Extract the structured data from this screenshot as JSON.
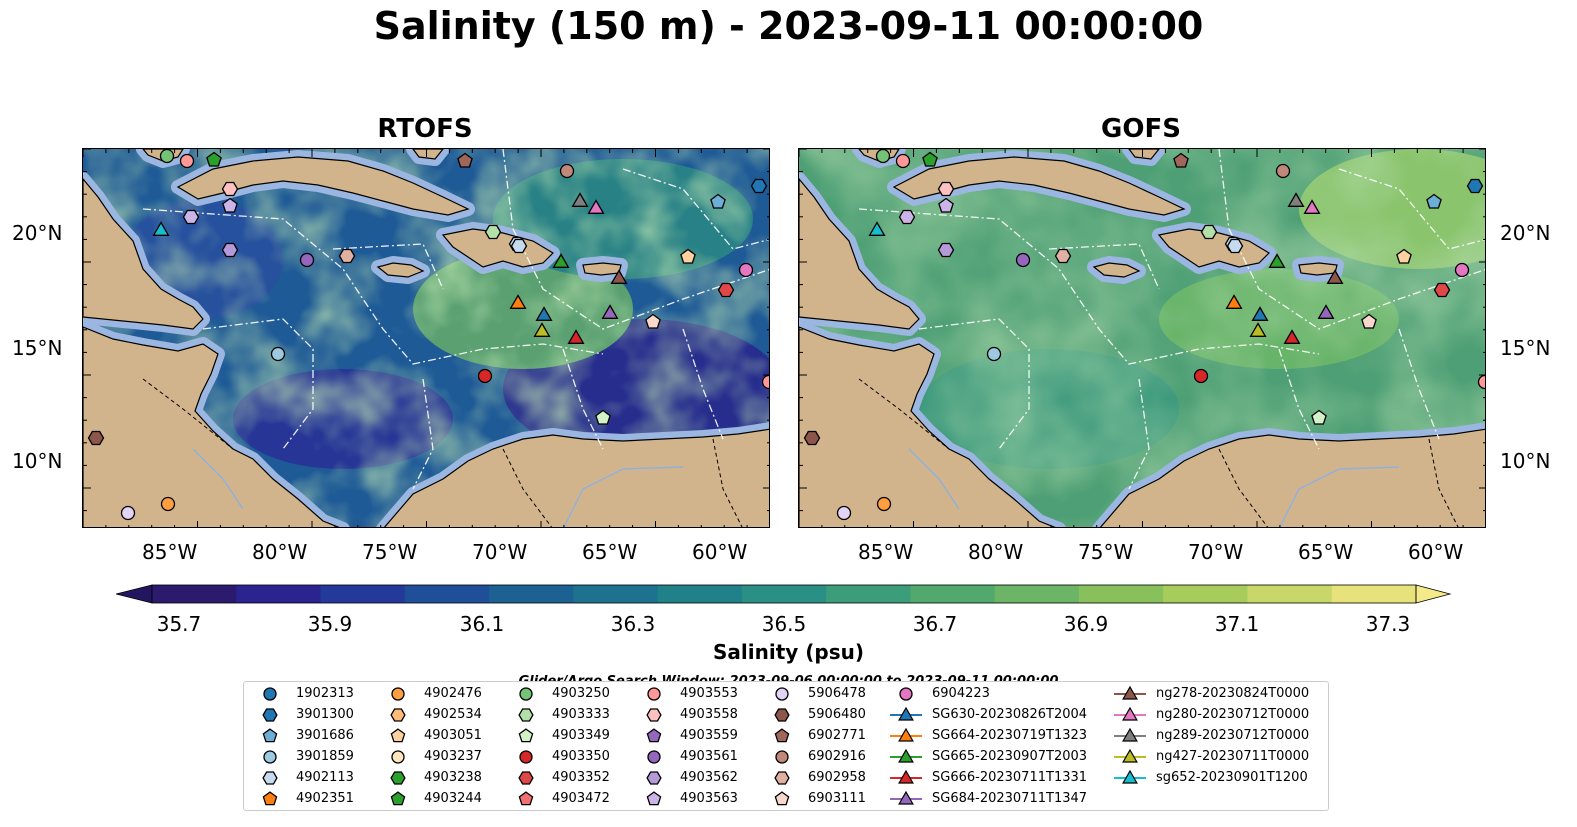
{
  "title": "Salinity (150 m) - 2023-09-11 00:00:00",
  "panels": [
    {
      "title": "RTOFS"
    },
    {
      "title": "GOFS"
    }
  ],
  "lon_labels": [
    "85°W",
    "80°W",
    "75°W",
    "70°W",
    "65°W",
    "60°W"
  ],
  "lat_labels": [
    "20°N",
    "15°N",
    "10°N"
  ],
  "colorbar": {
    "ticks": [
      "35.7",
      "35.9",
      "36.1",
      "36.3",
      "36.5",
      "36.7",
      "36.9",
      "37.1",
      "37.3"
    ],
    "label": "Salinity (psu)",
    "range": [
      35.7,
      37.4
    ],
    "colors": [
      "#2b1a6e",
      "#2a2390",
      "#243a9b",
      "#1f4f98",
      "#1b6293",
      "#1c728f",
      "#20818b",
      "#2a8f84",
      "#3c9d7a",
      "#52a96e",
      "#6cb566",
      "#88c05c",
      "#a8cc5c",
      "#c8d868",
      "#e8e27a"
    ]
  },
  "search_window": "Glider/Argo Search Window: 2023-09-06 00:00:00 to 2023-09-11 00:00:00",
  "colors": {
    "land": "#d2b48c",
    "shelf": "#9bb6e0",
    "rtofs_base": "#1e5a96",
    "gofs_base": "#4e9f75"
  },
  "legend": [
    {
      "label": "1902313",
      "marker": "circle",
      "color": "#1f77b4"
    },
    {
      "label": "3901300",
      "marker": "hexagon",
      "color": "#1f77b4"
    },
    {
      "label": "3901686",
      "marker": "pentagon",
      "color": "#6baed6"
    },
    {
      "label": "3901859",
      "marker": "circle",
      "color": "#9ecae1"
    },
    {
      "label": "4902113",
      "marker": "hexagon",
      "color": "#c6dbef"
    },
    {
      "label": "4902351",
      "marker": "pentagon",
      "color": "#ff7f0e"
    },
    {
      "label": "4902476",
      "marker": "circle",
      "color": "#ff9f40"
    },
    {
      "label": "4902534",
      "marker": "hexagon",
      "color": "#ffbb78"
    },
    {
      "label": "4903051",
      "marker": "pentagon",
      "color": "#ffd0a0"
    },
    {
      "label": "4903237",
      "marker": "circle",
      "color": "#ffe4c0"
    },
    {
      "label": "4903238",
      "marker": "hexagon",
      "color": "#2ca02c"
    },
    {
      "label": "4903244",
      "marker": "pentagon",
      "color": "#2ca02c"
    },
    {
      "label": "4903250",
      "marker": "circle",
      "color": "#74c476"
    },
    {
      "label": "4903333",
      "marker": "hexagon",
      "color": "#b2e0a8"
    },
    {
      "label": "4903349",
      "marker": "pentagon",
      "color": "#d4f2c8"
    },
    {
      "label": "4903350",
      "marker": "circle",
      "color": "#d62728"
    },
    {
      "label": "4903352",
      "marker": "hexagon",
      "color": "#e04848"
    },
    {
      "label": "4903472",
      "marker": "pentagon",
      "color": "#f07070"
    },
    {
      "label": "4903553",
      "marker": "circle",
      "color": "#ff9896"
    },
    {
      "label": "4903558",
      "marker": "hexagon",
      "color": "#ffc0c0"
    },
    {
      "label": "4903559",
      "marker": "pentagon",
      "color": "#9467bd"
    },
    {
      "label": "4903561",
      "marker": "circle",
      "color": "#9467bd"
    },
    {
      "label": "4903562",
      "marker": "hexagon",
      "color": "#b49ad8"
    },
    {
      "label": "4903563",
      "marker": "pentagon",
      "color": "#cbb5e8"
    },
    {
      "label": "5906478",
      "marker": "circle",
      "color": "#e2d4f4"
    },
    {
      "label": "5906480",
      "marker": "hexagon",
      "color": "#8c564b"
    },
    {
      "label": "6902771",
      "marker": "pentagon",
      "color": "#a0665a"
    },
    {
      "label": "6902916",
      "marker": "circle",
      "color": "#c08878"
    },
    {
      "label": "6902958",
      "marker": "hexagon",
      "color": "#e0b0a0"
    },
    {
      "label": "6903111",
      "marker": "pentagon",
      "color": "#f8d8cc"
    },
    {
      "label": "6904223",
      "marker": "circle",
      "color": "#e377c2"
    },
    {
      "label": "SG630-20230826T2004",
      "marker": "triangle",
      "color": "#1f77b4"
    },
    {
      "label": "SG664-20230719T1323",
      "marker": "triangle",
      "color": "#ff7f0e"
    },
    {
      "label": "SG665-20230907T2003",
      "marker": "triangle",
      "color": "#2ca02c"
    },
    {
      "label": "SG666-20230711T1331",
      "marker": "triangle",
      "color": "#d62728"
    },
    {
      "label": "SG684-20230711T1347",
      "marker": "triangle",
      "color": "#9467bd"
    },
    {
      "label": "ng278-20230824T0000",
      "marker": "triangle",
      "color": "#8c564b"
    },
    {
      "label": "ng280-20230712T0000",
      "marker": "triangle",
      "color": "#e377c2"
    },
    {
      "label": "ng289-20230712T0000",
      "marker": "triangle",
      "color": "#7f7f7f"
    },
    {
      "label": "ng427-20230711T0000",
      "marker": "triangle",
      "color": "#bcbd22"
    },
    {
      "label": "sg652-20230901T1200",
      "marker": "triangle",
      "color": "#17becf"
    }
  ]
}
